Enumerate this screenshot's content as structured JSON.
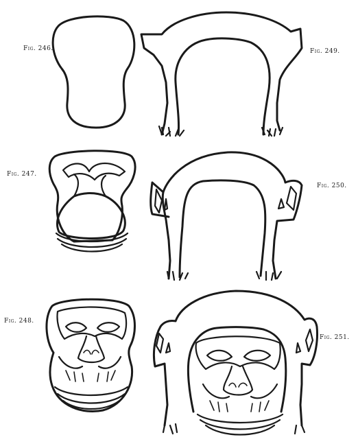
{
  "figures": [
    {
      "id": "fig-246",
      "label": "Fig. 246."
    },
    {
      "id": "fig-247",
      "label": "Fig. 247."
    },
    {
      "id": "fig-248",
      "label": "Fig. 248."
    },
    {
      "id": "fig-249",
      "label": "Fig. 249."
    },
    {
      "id": "fig-250",
      "label": "Fig. 250."
    },
    {
      "id": "fig-251",
      "label": "Fig. 251."
    }
  ],
  "colors": {
    "ink": "#1a1a1a",
    "paper": "#ffffff"
  }
}
